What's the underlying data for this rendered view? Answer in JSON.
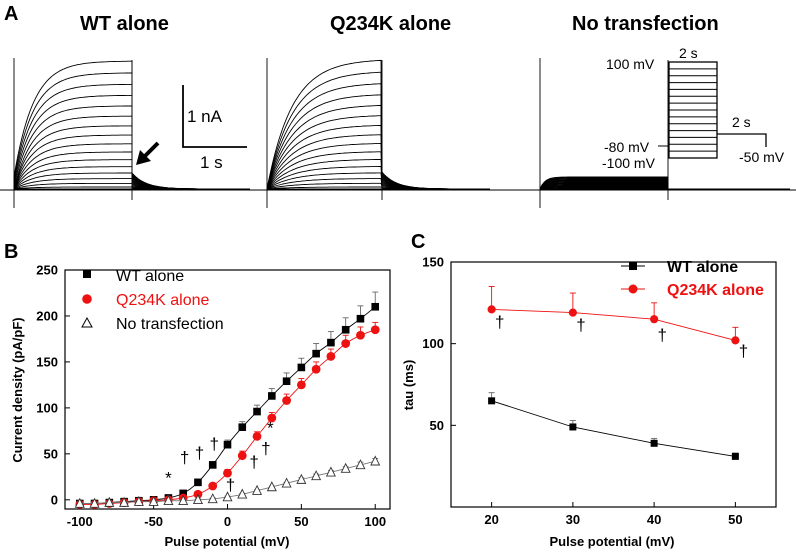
{
  "panel_a": {
    "label": "A",
    "titles": [
      "WT alone",
      "Q234K alone",
      "No transfection"
    ],
    "scale_bar": {
      "current_label": "1 nA",
      "time_label": "1 s"
    },
    "protocol": {
      "top_voltage": "100 mV",
      "holding_voltage": "-80 mV",
      "bottom_voltage": "-100 mV",
      "tail_voltage": "-50 mV",
      "step_duration": "2 s",
      "tail_duration": "2 s"
    }
  },
  "chart_data": [
    {
      "id": "B",
      "panel_label": "B",
      "type": "scatter",
      "xlabel": "Pulse potential (mV)",
      "ylabel": "Current density (pA/pF)",
      "xlim": [
        -110,
        110
      ],
      "ylim": [
        -10,
        250
      ],
      "xticks": [
        -100,
        -50,
        0,
        50,
        100
      ],
      "yticks": [
        0,
        50,
        100,
        150,
        200,
        250
      ],
      "legend": [
        "WT alone",
        "Q234K alone",
        "No transfection"
      ],
      "x": [
        -100,
        -90,
        -80,
        -70,
        -60,
        -50,
        -40,
        -30,
        -20,
        -10,
        0,
        10,
        20,
        30,
        40,
        50,
        60,
        70,
        80,
        90,
        100
      ],
      "series": [
        {
          "name": "WT alone",
          "color": "#000000",
          "marker": "square",
          "values": [
            -4,
            -4,
            -3,
            -2,
            -1,
            0,
            2,
            7,
            19,
            38,
            60,
            79,
            96,
            113,
            129,
            144,
            159,
            171,
            185,
            197,
            210
          ],
          "err": [
            2,
            2,
            2,
            2,
            2,
            2,
            2,
            3,
            3,
            3,
            5,
            6,
            7,
            8,
            9,
            10,
            11,
            12,
            13,
            14,
            16
          ]
        },
        {
          "name": "Q234K alone",
          "color": "#ee1111",
          "marker": "circle",
          "values": [
            -5,
            -5,
            -4,
            -3,
            -2,
            -1,
            0,
            2,
            6,
            15,
            29,
            48,
            69,
            89,
            108,
            125,
            142,
            156,
            170,
            179,
            185
          ],
          "err": [
            2,
            2,
            2,
            2,
            2,
            2,
            2,
            2,
            2,
            3,
            4,
            5,
            5,
            6,
            7,
            7,
            8,
            8,
            9,
            9,
            8
          ]
        },
        {
          "name": "No transfection",
          "color": "#555555",
          "marker": "triangle-open",
          "values": [
            -4,
            -4,
            -3,
            -3,
            -2,
            -2,
            -1,
            -1,
            0,
            1,
            3,
            6,
            10,
            14,
            18,
            22,
            26,
            30,
            34,
            38,
            42
          ],
          "err": [
            1,
            1,
            1,
            1,
            1,
            1,
            1,
            1,
            1,
            1,
            1,
            1,
            1,
            1,
            1,
            2,
            2,
            2,
            2,
            3,
            3
          ]
        }
      ],
      "annotations": [
        {
          "text": "*",
          "x": -40,
          "y": 18
        },
        {
          "text": "†",
          "x": -29,
          "y": 40
        },
        {
          "text": "†",
          "x": -19,
          "y": 45
        },
        {
          "text": "†",
          "x": -9,
          "y": 55
        },
        {
          "text": "†",
          "x": 2,
          "y": 10
        },
        {
          "text": "†",
          "x": 18,
          "y": 35
        },
        {
          "text": "†",
          "x": 26,
          "y": 50
        },
        {
          "text": "*",
          "x": 29,
          "y": 72
        }
      ]
    },
    {
      "id": "C",
      "panel_label": "C",
      "type": "line",
      "xlabel": "Pulse potential (mV)",
      "ylabel": "tau (ms)",
      "xlim": [
        15,
        55
      ],
      "ylim": [
        0,
        150
      ],
      "xticks": [
        20,
        30,
        40,
        50
      ],
      "yticks": [
        50,
        100,
        150
      ],
      "legend": [
        "WT alone",
        "Q234K alone"
      ],
      "x": [
        20,
        30,
        40,
        50
      ],
      "series": [
        {
          "name": "WT alone",
          "color": "#000000",
          "marker": "square",
          "values": [
            65,
            49,
            39,
            31
          ],
          "err": [
            5,
            4,
            3,
            2
          ]
        },
        {
          "name": "Q234K alone",
          "color": "#ee1111",
          "marker": "circle",
          "values": [
            121,
            119,
            115,
            102
          ],
          "err": [
            14,
            12,
            10,
            8
          ]
        }
      ],
      "annotations": [
        {
          "text": "†",
          "x": 21,
          "y": 110
        },
        {
          "text": "†",
          "x": 31,
          "y": 108
        },
        {
          "text": "†",
          "x": 41,
          "y": 102
        },
        {
          "text": "†",
          "x": 51,
          "y": 92
        }
      ]
    }
  ]
}
